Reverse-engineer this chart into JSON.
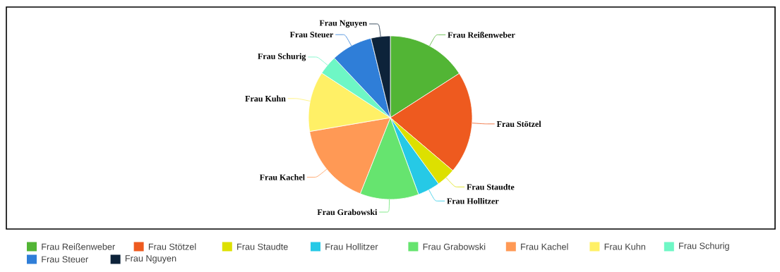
{
  "chart_data": {
    "type": "pie",
    "legend": "bottom",
    "categories": [
      "Frau Reißenweber",
      "Frau Stötzel",
      "Frau Staudte",
      "Frau Hollitzer",
      "Frau Grabowski",
      "Frau Kachel",
      "Frau Kuhn",
      "Frau Schurig",
      "Frau Steuer",
      "Frau Nguyen"
    ],
    "values": [
      15.9,
      20.3,
      3.8,
      4.4,
      11.6,
      16.3,
      11.9,
      3.8,
      8.2,
      3.8
    ],
    "colors": [
      "#52b535",
      "#ee5a1f",
      "#dde000",
      "#26c9e6",
      "#66e46f",
      "#ff9955",
      "#fff066",
      "#6ef7c5",
      "#2f7ed8",
      "#0d233a"
    ]
  }
}
